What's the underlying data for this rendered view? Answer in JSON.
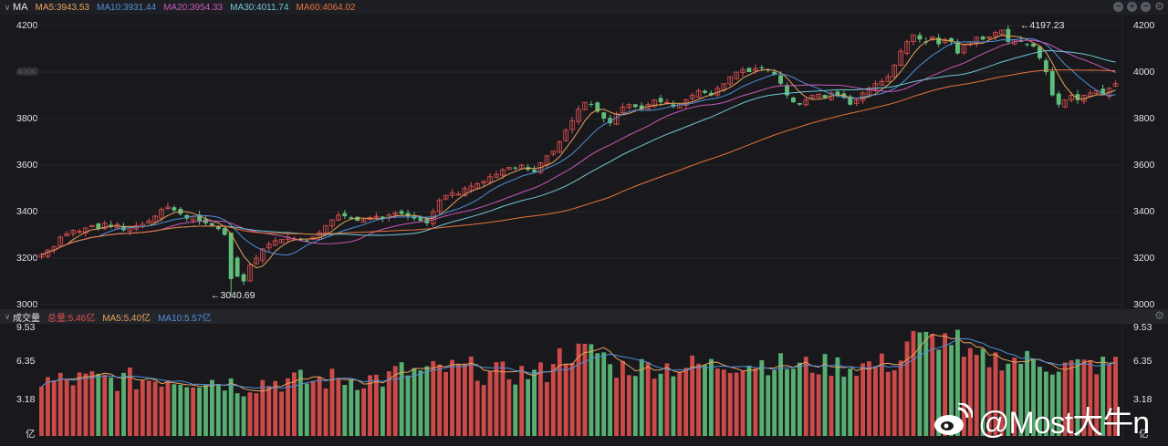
{
  "price_panel": {
    "title": "MA",
    "ma_legend": [
      {
        "label": "MA5:3943.53",
        "color": "#e8a35a"
      },
      {
        "label": "MA10:3931.44",
        "color": "#4f8fd9"
      },
      {
        "label": "MA20:3954.33",
        "color": "#c858b8"
      },
      {
        "label": "MA30:4011.74",
        "color": "#6fc7d6"
      },
      {
        "label": "MA60:4064.02",
        "color": "#e8733a"
      }
    ],
    "y_ticks": [
      "4200",
      "4000",
      "3800",
      "3600",
      "3400",
      "3200",
      "3000"
    ],
    "high_annotation": "←4197.23",
    "low_annotation": "←3040.69",
    "tool_icons": [
      "zoom-out-icon",
      "zoom-in-icon",
      "minus-icon",
      "gear-icon"
    ]
  },
  "volume_panel": {
    "title": "成交量",
    "legend": [
      {
        "label": "总量:5.46亿",
        "color": "#e0504e"
      },
      {
        "label": "MA5:5.40亿",
        "color": "#e8a35a"
      },
      {
        "label": "MA10:5.57亿",
        "color": "#4f8fd9"
      }
    ],
    "y_ticks": [
      "9.53",
      "6.35",
      "3.18"
    ],
    "unit": "亿"
  },
  "watermark": {
    "text": "@Most大牛n"
  },
  "colors": {
    "up": "#e0504e",
    "down": "#5fbf7a",
    "background": "#19191d"
  },
  "chart_data": {
    "type": "candlestick",
    "title": "MA",
    "y_range": [
      3000,
      4200
    ],
    "y_ticks": [
      3000,
      3200,
      3400,
      3600,
      3800,
      4000,
      4200
    ],
    "annotations": [
      {
        "label": "4197.23",
        "type": "high"
      },
      {
        "label": "3040.69",
        "type": "low"
      }
    ],
    "moving_averages": {
      "MA5": 3943.53,
      "MA10": 3931.44,
      "MA20": 3954.33,
      "MA30": 4011.74,
      "MA60": 4064.02
    },
    "close_path": [
      3215,
      3235,
      3250,
      3290,
      3305,
      3320,
      3315,
      3330,
      3340,
      3325,
      3350,
      3335,
      3345,
      3320,
      3330,
      3340,
      3345,
      3360,
      3380,
      3410,
      3420,
      3405,
      3390,
      3370,
      3380,
      3360,
      3350,
      3340,
      3325,
      3300,
      3200,
      3120,
      3100,
      3170,
      3200,
      3240,
      3260,
      3275,
      3280,
      3290,
      3285,
      3280,
      3275,
      3290,
      3310,
      3340,
      3365,
      3385,
      3380,
      3370,
      3360,
      3365,
      3375,
      3380,
      3370,
      3385,
      3395,
      3390,
      3380,
      3370,
      3360,
      3350,
      3400,
      3450,
      3470,
      3480,
      3475,
      3500,
      3510,
      3520,
      3530,
      3550,
      3560,
      3580,
      3590,
      3585,
      3600,
      3580,
      3570,
      3610,
      3640,
      3660,
      3700,
      3750,
      3790,
      3840,
      3870,
      3860,
      3830,
      3800,
      3780,
      3820,
      3850,
      3860,
      3850,
      3840,
      3860,
      3880,
      3870,
      3870,
      3850,
      3860,
      3880,
      3900,
      3920,
      3910,
      3900,
      3930,
      3950,
      3980,
      4000,
      4010,
      4000,
      4015,
      4020,
      4010,
      3990,
      3950,
      3900,
      3870,
      3860,
      3880,
      3900,
      3905,
      3890,
      3910,
      3900,
      3890,
      3860,
      3880,
      3910,
      3930,
      3950,
      3960,
      3980,
      4030,
      4090,
      4130,
      4160,
      4140,
      4130,
      4150,
      4120,
      4140,
      4130,
      4080,
      4120,
      4130,
      4150,
      4140,
      4150,
      4170,
      4180,
      4130,
      4140,
      4130,
      4120,
      4110,
      4060,
      4000,
      3900,
      3860,
      3880,
      3900,
      3880,
      3900,
      3910,
      3920,
      3900,
      3930,
      3950
    ],
    "volume": {
      "unit": "亿",
      "y_ticks": [
        3.18,
        6.35,
        9.53
      ],
      "total": 5.46,
      "MA5": 5.4,
      "MA10": 5.57
    }
  }
}
